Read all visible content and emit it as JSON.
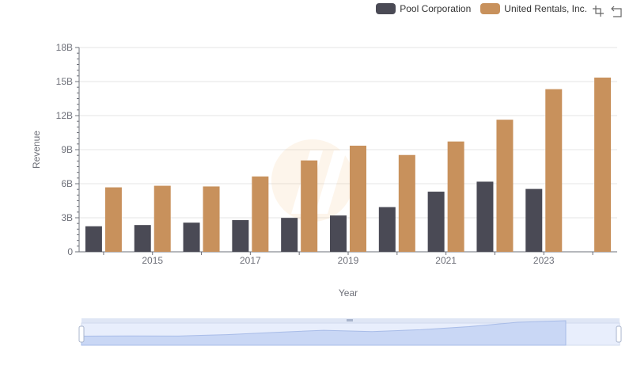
{
  "chart_data": {
    "type": "bar",
    "xlabel": "Year",
    "ylabel": "Revenue",
    "ylim": [
      0,
      18000000000
    ],
    "yticks": [
      {
        "value": 0,
        "label": "0"
      },
      {
        "value": 3000000000,
        "label": "3B"
      },
      {
        "value": 6000000000,
        "label": "6B"
      },
      {
        "value": 9000000000,
        "label": "9B"
      },
      {
        "value": 12000000000,
        "label": "12B"
      },
      {
        "value": 15000000000,
        "label": "15B"
      },
      {
        "value": 18000000000,
        "label": "18B"
      }
    ],
    "categories": [
      "2014",
      "2015",
      "2016",
      "2017",
      "2018",
      "2019",
      "2020",
      "2021",
      "2022",
      "2023",
      "2024"
    ],
    "xtick_labels": [
      "2015",
      "2017",
      "2019",
      "2021",
      "2023"
    ],
    "grid": true,
    "legend_position": "top-right",
    "series": [
      {
        "name": "Pool Corporation",
        "color": "#4a4a55",
        "values": [
          2250000000,
          2360000000,
          2570000000,
          2790000000,
          2990000000,
          3200000000,
          3940000000,
          5300000000,
          6180000000,
          5540000000,
          null
        ]
      },
      {
        "name": "United Rentals, Inc.",
        "color": "#c8915c",
        "values": [
          5680000000,
          5820000000,
          5760000000,
          6640000000,
          8050000000,
          9350000000,
          8530000000,
          9720000000,
          11640000000,
          14330000000,
          15350000000
        ]
      }
    ]
  },
  "toolbox": {
    "icons": [
      "zoom-icon",
      "restore-icon"
    ]
  }
}
